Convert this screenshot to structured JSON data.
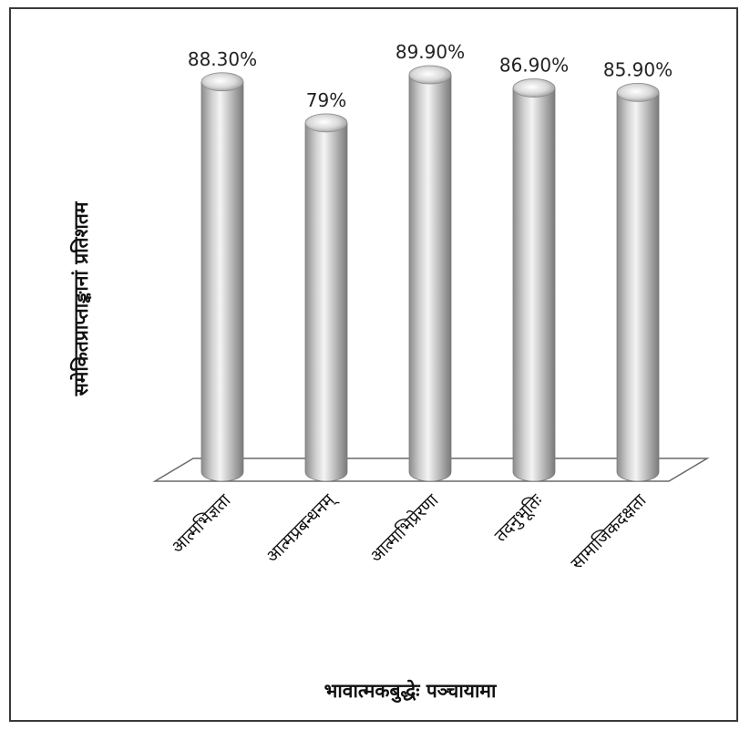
{
  "chart_data": {
    "type": "bar",
    "style": "3d-cylinder",
    "categories": [
      "आत्मभिज्ञता",
      "आत्मप्रबन्धनम्",
      "आत्माभिप्रेरणा",
      "तदनुभूतिः",
      "सामाजिकदक्षता"
    ],
    "values": [
      88.3,
      79,
      89.9,
      86.9,
      85.9
    ],
    "value_labels": [
      "88.30%",
      "79%",
      "89.90%",
      "86.90%",
      "85.90%"
    ],
    "xlabel": "भावात्मकबुद्धेः पञ्चायामा",
    "ylabel": "समेकितप्राप्ताङ्कानां प्रतिशतम",
    "grid": false,
    "legend": "none",
    "colors": {
      "bar": "#b8b8b8",
      "floor": "#ffffff",
      "frame": "#3a3a3a"
    }
  }
}
